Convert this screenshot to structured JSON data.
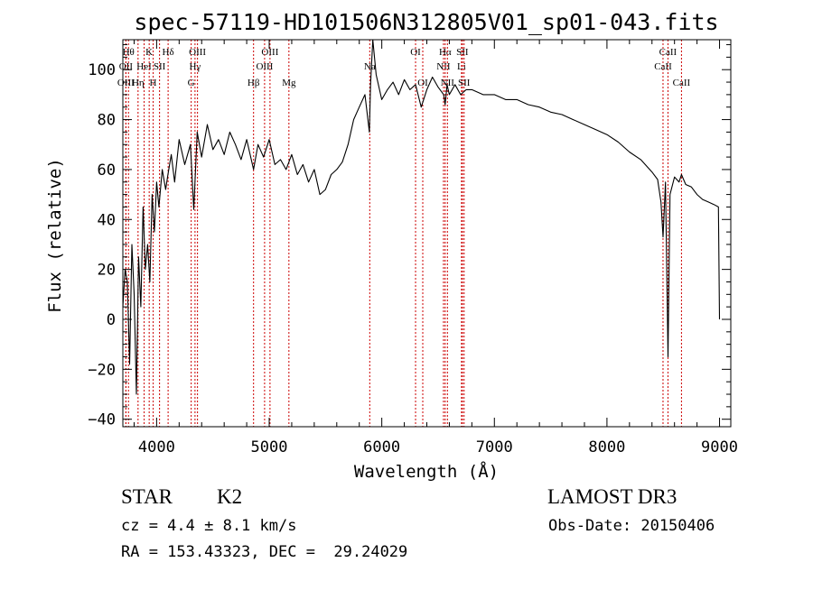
{
  "chart_data": {
    "type": "line",
    "title": "spec-57119-HD101506N312805V01_sp01-043.fits",
    "xlabel": "Wavelength (Å)",
    "ylabel": "Flux (relative)",
    "xlim": [
      3700,
      9100
    ],
    "ylim": [
      -43,
      112
    ],
    "xticks": [
      4000,
      5000,
      6000,
      7000,
      8000,
      9000
    ],
    "xtick_labels": [
      "4000",
      "5000",
      "6000",
      "7000",
      "8000",
      "9000"
    ],
    "yticks": [
      -40,
      -20,
      0,
      20,
      40,
      60,
      80,
      100
    ],
    "ytick_labels": [
      "−40",
      "−20",
      "0",
      "20",
      "40",
      "60",
      "80",
      "100"
    ],
    "line_color": "#000000",
    "marker_color": "#cc0000",
    "grid": false,
    "series": [
      {
        "x": [
          3700,
          3720,
          3740,
          3760,
          3780,
          3800,
          3820,
          3840,
          3860,
          3880,
          3900,
          3920,
          3940,
          3960,
          3980,
          4000,
          4020,
          4050,
          4080,
          4100,
          4130,
          4160,
          4200,
          4250,
          4300,
          4330,
          4360,
          4400,
          4450,
          4500,
          4550,
          4600,
          4650,
          4700,
          4750,
          4800,
          4861,
          4900,
          4950,
          5000,
          5050,
          5100,
          5150,
          5200,
          5250,
          5300,
          5350,
          5400,
          5450,
          5500,
          5550,
          5600,
          5650,
          5700,
          5750,
          5800,
          5850,
          5890,
          5900,
          5920,
          5950,
          6000,
          6050,
          6100,
          6150,
          6200,
          6250,
          6300,
          6350,
          6400,
          6450,
          6500,
          6550,
          6563,
          6580,
          6600,
          6650,
          6700,
          6750,
          6800,
          6900,
          7000,
          7100,
          7200,
          7300,
          7400,
          7500,
          7600,
          7700,
          7800,
          7900,
          8000,
          8100,
          8200,
          8300,
          8400,
          8450,
          8480,
          8498,
          8520,
          8542,
          8560,
          8600,
          8640,
          8662,
          8700,
          8750,
          8800,
          8850,
          8900,
          8950,
          8990,
          9000
        ],
        "values": [
          5,
          20,
          15,
          -18,
          30,
          10,
          -30,
          25,
          5,
          45,
          20,
          30,
          15,
          50,
          35,
          55,
          45,
          60,
          52,
          58,
          66,
          55,
          72,
          62,
          70,
          44,
          75,
          65,
          78,
          68,
          72,
          66,
          75,
          70,
          64,
          72,
          60,
          70,
          65,
          72,
          62,
          64,
          60,
          66,
          58,
          62,
          55,
          60,
          50,
          52,
          58,
          60,
          63,
          70,
          80,
          85,
          90,
          75,
          94,
          112,
          98,
          88,
          92,
          95,
          90,
          96,
          92,
          94,
          85,
          92,
          97,
          93,
          90,
          86,
          94,
          90,
          94,
          90,
          92,
          92,
          90,
          90,
          88,
          88,
          86,
          85,
          83,
          82,
          80,
          78,
          76,
          74,
          71,
          67,
          64,
          59,
          56,
          47,
          33,
          55,
          -15,
          50,
          57,
          55,
          58,
          54,
          53,
          50,
          48,
          47,
          46,
          45,
          0
        ]
      }
    ],
    "line_markers": [
      {
        "x": 3750,
        "label": "Hθ",
        "row": 0
      },
      {
        "x": 3727,
        "label": "OII",
        "row": 1
      },
      {
        "x": 3727,
        "label": "OIII",
        "row": 2
      },
      {
        "x": 3835,
        "label": "Hη",
        "row": 2
      },
      {
        "x": 3889,
        "label": "HeI",
        "row": 1
      },
      {
        "x": 3934,
        "label": "K",
        "row": 0
      },
      {
        "x": 3969,
        "label": "H",
        "row": 2
      },
      {
        "x": 4026,
        "label": "SII",
        "row": 1
      },
      {
        "x": 4102,
        "label": "Hδ",
        "row": 0
      },
      {
        "x": 4307,
        "label": "G",
        "row": 2
      },
      {
        "x": 4341,
        "label": "Hγ",
        "row": 1
      },
      {
        "x": 4363,
        "label": "OIII",
        "row": 0
      },
      {
        "x": 4861,
        "label": "Hβ",
        "row": 2
      },
      {
        "x": 4959,
        "label": "OIII",
        "row": 1
      },
      {
        "x": 5007,
        "label": "OIII",
        "row": 0
      },
      {
        "x": 5175,
        "label": "Mg",
        "row": 2
      },
      {
        "x": 5893,
        "label": "Na",
        "row": 1
      },
      {
        "x": 6300,
        "label": "OI",
        "row": 0
      },
      {
        "x": 6364,
        "label": "OI",
        "row": 2
      },
      {
        "x": 6548,
        "label": "NII",
        "row": 1
      },
      {
        "x": 6563,
        "label": "Hα",
        "row": 0
      },
      {
        "x": 6583,
        "label": "NII",
        "row": 2
      },
      {
        "x": 6708,
        "label": "Li",
        "row": 1
      },
      {
        "x": 6716,
        "label": "SII",
        "row": 0
      },
      {
        "x": 6731,
        "label": "SII",
        "row": 2
      },
      {
        "x": 8498,
        "label": "CaII",
        "row": 1
      },
      {
        "x": 8542,
        "label": "CaII",
        "row": 0
      },
      {
        "x": 8662,
        "label": "CaII",
        "row": 2
      }
    ]
  },
  "info": {
    "object_class": "STAR",
    "subclass": "K2",
    "survey": "LAMOST DR3",
    "redshift": "cz = 4.4 ± 8.1 km/s",
    "obs_date": "Obs-Date: 20150406",
    "coordinates": "RA = 153.43323, DEC =  29.24029"
  }
}
